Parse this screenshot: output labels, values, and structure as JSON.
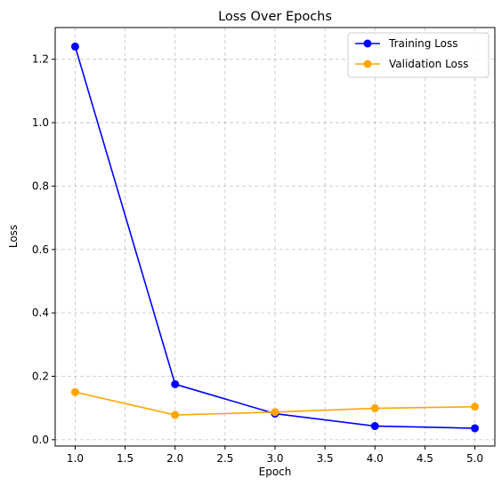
{
  "chart_data": {
    "type": "line",
    "title": "Loss Over Epochs",
    "xlabel": "Epoch",
    "ylabel": "Loss",
    "x": [
      1,
      2,
      3,
      4,
      5
    ],
    "xlim": [
      0.8,
      5.2
    ],
    "ylim": [
      -0.02,
      1.3
    ],
    "xticks": [
      1.0,
      1.5,
      2.0,
      2.5,
      3.0,
      3.5,
      4.0,
      4.5,
      5.0
    ],
    "xtick_labels": [
      "1.0",
      "1.5",
      "2.0",
      "2.5",
      "3.0",
      "3.5",
      "4.0",
      "4.5",
      "5.0"
    ],
    "yticks": [
      0.0,
      0.2,
      0.4,
      0.6,
      0.8,
      1.0,
      1.2
    ],
    "ytick_labels": [
      "0.0",
      "0.2",
      "0.4",
      "0.6",
      "0.8",
      "1.0",
      "1.2"
    ],
    "grid": true,
    "legend_position": "top-right",
    "series": [
      {
        "name": "Training Loss",
        "color": "#0000ff",
        "marker": "circle",
        "values": [
          1.24,
          0.175,
          0.082,
          0.043,
          0.036
        ]
      },
      {
        "name": "Validation Loss",
        "color": "#ffa500",
        "marker": "circle",
        "values": [
          0.15,
          0.078,
          0.087,
          0.099,
          0.104
        ]
      }
    ]
  }
}
